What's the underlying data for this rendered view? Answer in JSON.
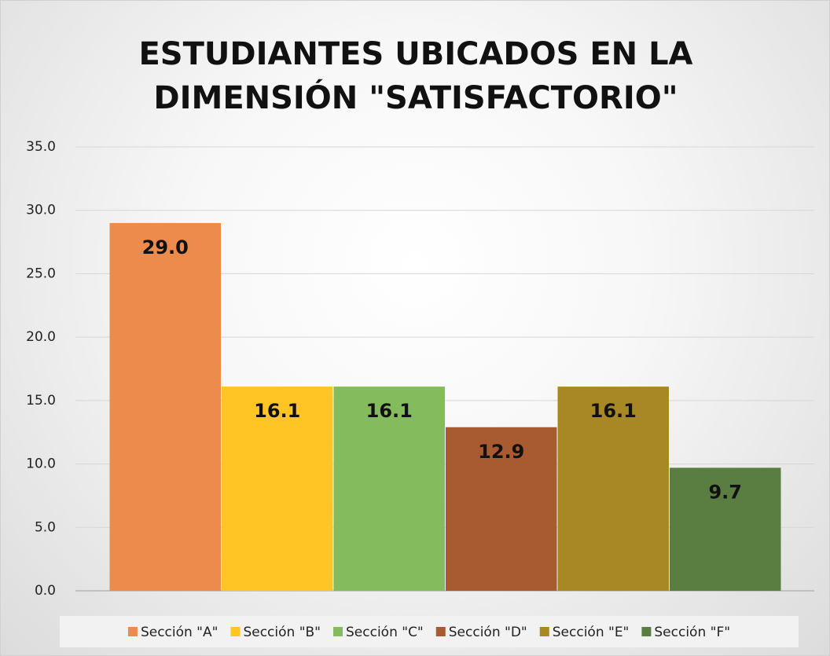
{
  "chart_data": {
    "type": "bar",
    "title": "ESTUDIANTES UBICADOS EN LA DIMENSIÓN \"SATISFACTORIO\"",
    "categories": [
      null
    ],
    "series": [
      {
        "name": "Sección \"A\"",
        "color": "#ed8b4c",
        "values": [
          29.0
        ],
        "value_labels": [
          "29.0"
        ]
      },
      {
        "name": "Sección \"B\"",
        "color": "#ffc524",
        "values": [
          16.1
        ],
        "value_labels": [
          "16.1"
        ]
      },
      {
        "name": "Sección \"C\"",
        "color": "#84bb5c",
        "values": [
          16.1
        ],
        "value_labels": [
          "16.1"
        ]
      },
      {
        "name": "Sección \"D\"",
        "color": "#a85a30",
        "values": [
          12.9
        ],
        "value_labels": [
          "12.9"
        ]
      },
      {
        "name": "Sección \"E\"",
        "color": "#a88825",
        "values": [
          16.1
        ],
        "value_labels": [
          "16.1"
        ]
      },
      {
        "name": "Sección \"F\"",
        "color": "#5a7e42",
        "values": [
          9.7
        ],
        "value_labels": [
          "9.7"
        ]
      }
    ],
    "ylim": [
      0,
      35
    ],
    "yticks": [
      {
        "value": 0,
        "label": "0.0"
      },
      {
        "value": 5,
        "label": "5.0"
      },
      {
        "value": 10,
        "label": "10.0"
      },
      {
        "value": 15,
        "label": "15.0"
      },
      {
        "value": 20,
        "label": "20.0"
      },
      {
        "value": 25,
        "label": "25.0"
      },
      {
        "value": 30,
        "label": "30.0"
      },
      {
        "value": 35,
        "label": "35.0"
      }
    ],
    "grid": true,
    "legend": "bottom"
  }
}
